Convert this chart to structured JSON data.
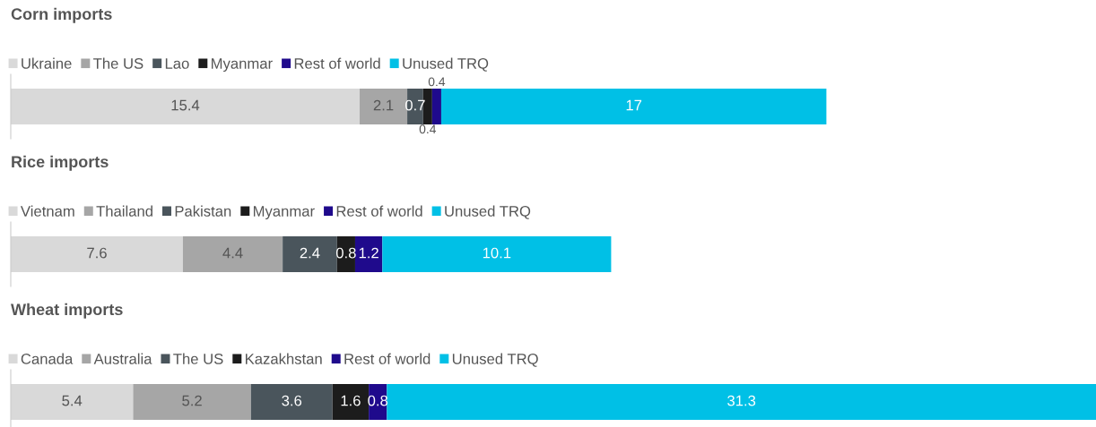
{
  "chart_data": [
    {
      "type": "bar",
      "orientation": "horizontal",
      "stacked": true,
      "title": "Corn imports",
      "categories": [
        null
      ],
      "data_labels": true,
      "legend": "top left",
      "series": [
        {
          "name": "Ukraine",
          "color": "#d9d9d9",
          "values": [
            15.4
          ]
        },
        {
          "name": "The US",
          "color": "#a6a6a6",
          "values": [
            2.1
          ]
        },
        {
          "name": "Lao",
          "color": "#4a555c",
          "values": [
            0.7
          ]
        },
        {
          "name": "Myanmar",
          "color": "#1c1c1c",
          "values": [
            0.4
          ]
        },
        {
          "name": "Rest of world",
          "color": "#1f0a8c",
          "values": [
            0.4
          ]
        },
        {
          "name": "Unused TRQ",
          "color": "#00c0e6",
          "values": [
            17
          ]
        }
      ]
    },
    {
      "type": "bar",
      "orientation": "horizontal",
      "stacked": true,
      "title": "Rice imports",
      "categories": [
        null
      ],
      "data_labels": true,
      "legend": "top left",
      "series": [
        {
          "name": "Vietnam",
          "color": "#d9d9d9",
          "values": [
            7.6
          ]
        },
        {
          "name": "Thailand",
          "color": "#a6a6a6",
          "values": [
            4.4
          ]
        },
        {
          "name": "Pakistan",
          "color": "#4a555c",
          "values": [
            2.4
          ]
        },
        {
          "name": "Myanmar",
          "color": "#1c1c1c",
          "values": [
            0.8
          ]
        },
        {
          "name": "Rest of world",
          "color": "#1f0a8c",
          "values": [
            1.2
          ]
        },
        {
          "name": "Unused TRQ",
          "color": "#00c0e6",
          "values": [
            10.1
          ]
        }
      ]
    },
    {
      "type": "bar",
      "orientation": "horizontal",
      "stacked": true,
      "title": "Wheat imports",
      "categories": [
        null
      ],
      "data_labels": true,
      "legend": "top left",
      "series": [
        {
          "name": "Canada",
          "color": "#d9d9d9",
          "values": [
            5.4
          ]
        },
        {
          "name": "Australia",
          "color": "#a6a6a6",
          "values": [
            5.2
          ]
        },
        {
          "name": "The US",
          "color": "#4a555c",
          "values": [
            3.6
          ]
        },
        {
          "name": "Kazakhstan",
          "color": "#1c1c1c",
          "values": [
            1.6
          ]
        },
        {
          "name": "Rest of world",
          "color": "#1f0a8c",
          "values": [
            0.8
          ]
        },
        {
          "name": "Unused TRQ",
          "color": "#00c0e6",
          "values": [
            31.3
          ]
        }
      ]
    }
  ]
}
